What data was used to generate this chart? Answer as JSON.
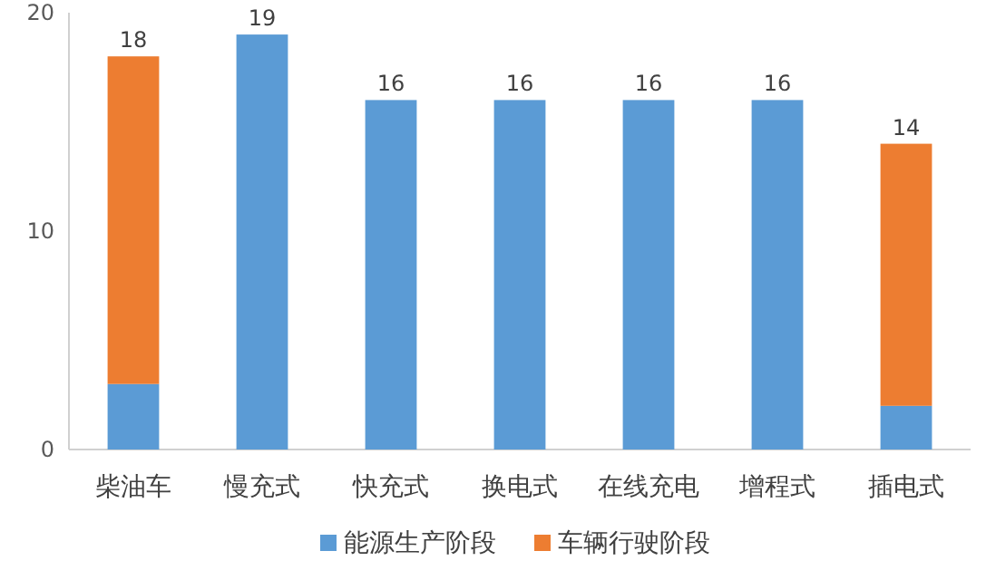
{
  "chart_data": {
    "type": "bar",
    "stacked": true,
    "categories": [
      "柴油车",
      "慢充式",
      "快充式",
      "换电式",
      "在线充电",
      "增程式",
      "插电式"
    ],
    "series": [
      {
        "name": "能源生产阶段",
        "color": "#5b9bd5",
        "values": [
          3,
          19,
          16,
          16,
          16,
          16,
          2
        ]
      },
      {
        "name": "车辆行驶阶段",
        "color": "#ed7d31",
        "values": [
          15,
          null,
          null,
          null,
          null,
          null,
          12
        ]
      }
    ],
    "totals": [
      "18",
      "19",
      "16",
      "16",
      "16",
      "16",
      "14"
    ],
    "ylim": [
      0,
      20
    ],
    "yticks": [
      0,
      10,
      20
    ],
    "legend": "bottom"
  }
}
